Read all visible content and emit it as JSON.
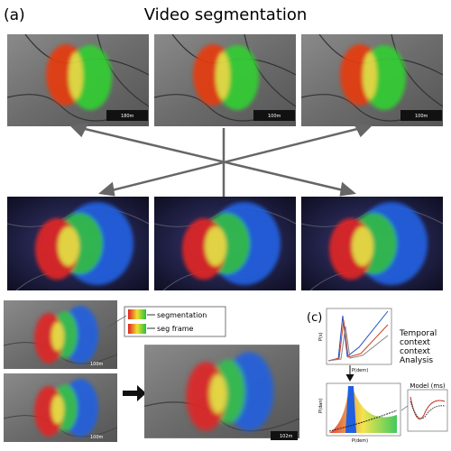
{
  "header": {
    "label": "(a)",
    "title": "Video segmentation"
  },
  "top_row": {
    "scale_labels": [
      "180m",
      "100m",
      "100m"
    ]
  },
  "middle_row": {
    "scale_labels": [
      "100m",
      "100m",
      "102m"
    ]
  },
  "bottom": {
    "scale_labels": [
      "100m",
      "100m"
    ],
    "result_scale_label": "102m"
  },
  "legend": {
    "items": [
      "segmentation",
      "seg frame"
    ]
  },
  "panel_c": {
    "label": "(c)",
    "annotations": [
      "Temporal",
      "context",
      "context",
      "Analysis"
    ],
    "upper_plot": {
      "y_label": "P(s)",
      "x_label": "P(dern)"
    },
    "lower_plot": {
      "y_label": "P(dan)",
      "x_label": "P(dem)"
    },
    "inset_title": "Model (ms)"
  }
}
